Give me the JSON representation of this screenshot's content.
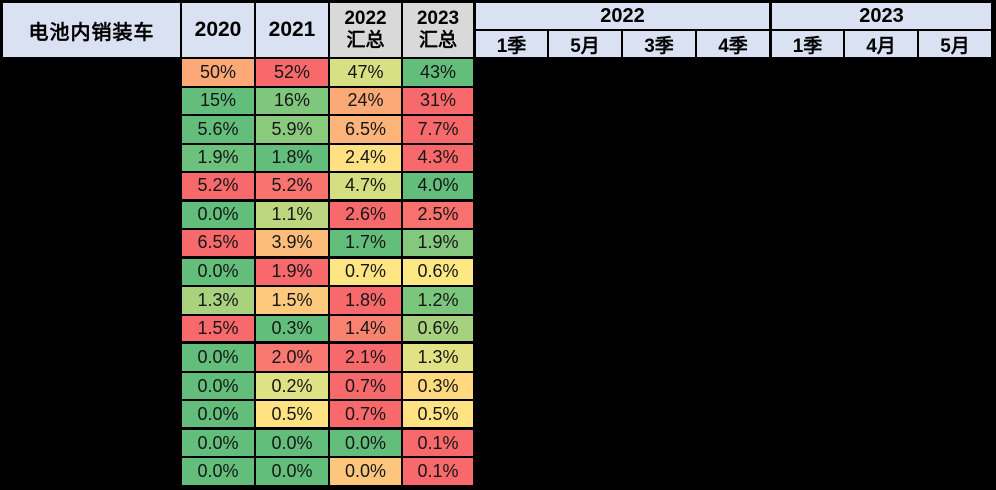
{
  "sheet": {
    "title": "电池内销装车",
    "columns": {
      "y2020": "2020",
      "y2021": "2021",
      "s2022_line1": "2022",
      "s2022_line2": "汇总",
      "s2023_line1": "2023",
      "s2023_line2": "汇总"
    },
    "period_groups": [
      {
        "label": "2022",
        "sub": [
          "1季",
          "5月",
          "3季",
          "4季"
        ]
      },
      {
        "label": "2023",
        "sub": [
          "1季",
          "4月",
          "5月"
        ]
      }
    ],
    "colors": {
      "header_blue": "#D9E1F2",
      "header_gray": "#D9D9D9",
      "border_black": "#000000",
      "redacted_black": "#000000",
      "scale_green": "#63BE7B",
      "scale_yellow": "#FFE583",
      "scale_red": "#F8696B"
    }
  },
  "chart_data": {
    "type": "heatmap",
    "title": "电池内销装车",
    "columns": [
      "2020",
      "2021",
      "2022汇总",
      "2023汇总"
    ],
    "period_columns_blacked_out": [
      "2022 1季",
      "2022 5月",
      "2022 3季",
      "2022 4季",
      "2023 1季",
      "2023 4月",
      "2023 5月"
    ],
    "row_labels_blacked_out": true,
    "rows": [
      {
        "group_end": false,
        "cells": [
          {
            "v": "50%",
            "c": "#FCA877"
          },
          {
            "v": "52%",
            "c": "#F8696B"
          },
          {
            "v": "47%",
            "c": "#D7E082"
          },
          {
            "v": "43%",
            "c": "#63BE7B"
          }
        ]
      },
      {
        "group_end": false,
        "cells": [
          {
            "v": "15%",
            "c": "#63BE7B"
          },
          {
            "v": "16%",
            "c": "#7FC77D"
          },
          {
            "v": "24%",
            "c": "#FBA977"
          },
          {
            "v": "31%",
            "c": "#F8696B"
          }
        ]
      },
      {
        "group_end": false,
        "cells": [
          {
            "v": "5.6%",
            "c": "#63BE7B"
          },
          {
            "v": "5.9%",
            "c": "#8ACA7D"
          },
          {
            "v": "6.5%",
            "c": "#FCB47A"
          },
          {
            "v": "7.7%",
            "c": "#F8696B"
          }
        ]
      },
      {
        "group_end": false,
        "cells": [
          {
            "v": "1.9%",
            "c": "#6CC17C"
          },
          {
            "v": "1.8%",
            "c": "#63BE7B"
          },
          {
            "v": "2.4%",
            "c": "#FFE183"
          },
          {
            "v": "4.3%",
            "c": "#F8696B"
          }
        ]
      },
      {
        "group_end": true,
        "cells": [
          {
            "v": "5.2%",
            "c": "#F8696B"
          },
          {
            "v": "5.2%",
            "c": "#F9746E"
          },
          {
            "v": "4.7%",
            "c": "#D5DF82"
          },
          {
            "v": "4.0%",
            "c": "#63BE7B"
          }
        ]
      },
      {
        "group_end": false,
        "cells": [
          {
            "v": "0.0%",
            "c": "#63BE7B"
          },
          {
            "v": "1.1%",
            "c": "#BCD780"
          },
          {
            "v": "2.6%",
            "c": "#F8696B"
          },
          {
            "v": "2.5%",
            "c": "#F9716D"
          }
        ]
      },
      {
        "group_end": true,
        "cells": [
          {
            "v": "6.5%",
            "c": "#F8696B"
          },
          {
            "v": "3.9%",
            "c": "#FCBD7B"
          },
          {
            "v": "1.7%",
            "c": "#63BE7B"
          },
          {
            "v": "1.9%",
            "c": "#83C87D"
          }
        ]
      },
      {
        "group_end": false,
        "cells": [
          {
            "v": "0.0%",
            "c": "#63BE7B"
          },
          {
            "v": "1.9%",
            "c": "#F8696B"
          },
          {
            "v": "0.7%",
            "c": "#FFE583"
          },
          {
            "v": "0.6%",
            "c": "#FEE884"
          }
        ]
      },
      {
        "group_end": false,
        "cells": [
          {
            "v": "1.3%",
            "c": "#A9D27F"
          },
          {
            "v": "1.5%",
            "c": "#FDC97D"
          },
          {
            "v": "1.8%",
            "c": "#F8696B"
          },
          {
            "v": "1.2%",
            "c": "#7BC67D"
          }
        ]
      },
      {
        "group_end": true,
        "cells": [
          {
            "v": "1.5%",
            "c": "#F8696B"
          },
          {
            "v": "0.3%",
            "c": "#63BE7B"
          },
          {
            "v": "1.4%",
            "c": "#F9836F"
          },
          {
            "v": "0.6%",
            "c": "#A6D17F"
          }
        ]
      },
      {
        "group_end": false,
        "cells": [
          {
            "v": "0.0%",
            "c": "#63BE7B"
          },
          {
            "v": "2.0%",
            "c": "#F97870"
          },
          {
            "v": "2.1%",
            "c": "#F8696B"
          },
          {
            "v": "1.3%",
            "c": "#E0E284"
          }
        ]
      },
      {
        "group_end": false,
        "cells": [
          {
            "v": "0.0%",
            "c": "#63BE7B"
          },
          {
            "v": "0.2%",
            "c": "#DEE184"
          },
          {
            "v": "0.7%",
            "c": "#F8696B"
          },
          {
            "v": "0.3%",
            "c": "#FFD980"
          }
        ]
      },
      {
        "group_end": true,
        "cells": [
          {
            "v": "0.0%",
            "c": "#63BE7B"
          },
          {
            "v": "0.5%",
            "c": "#FFE383"
          },
          {
            "v": "0.7%",
            "c": "#F8696B"
          },
          {
            "v": "0.5%",
            "c": "#FFE383"
          }
        ]
      },
      {
        "group_end": false,
        "cells": [
          {
            "v": "0.0%",
            "c": "#63BE7B"
          },
          {
            "v": "0.0%",
            "c": "#63BE7B"
          },
          {
            "v": "0.0%",
            "c": "#63BE7B"
          },
          {
            "v": "0.1%",
            "c": "#F8696B"
          }
        ]
      },
      {
        "group_end": false,
        "cells": [
          {
            "v": "0.0%",
            "c": "#63BE7B"
          },
          {
            "v": "0.0%",
            "c": "#63BE7B"
          },
          {
            "v": "0.0%",
            "c": "#FCC77D"
          },
          {
            "v": "0.1%",
            "c": "#F8696B"
          }
        ]
      }
    ]
  }
}
